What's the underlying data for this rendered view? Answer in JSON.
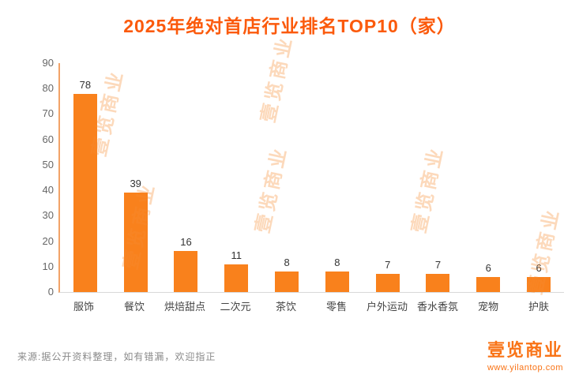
{
  "title": "2025年绝对首店行业排名TOP10（家）",
  "chart_data": {
    "type": "bar",
    "title": "2025年绝对首店行业排名TOP10（家）",
    "categories": [
      "服饰",
      "餐饮",
      "烘焙甜点",
      "二次元",
      "茶饮",
      "零售",
      "户外运动",
      "香水香氛",
      "宠物",
      "护肤"
    ],
    "values": [
      78,
      39,
      16,
      11,
      8,
      8,
      7,
      7,
      6,
      6
    ],
    "xlabel": "",
    "ylabel": "",
    "ylim": [
      0,
      90
    ],
    "yticks": [
      0,
      10,
      20,
      30,
      40,
      50,
      60,
      70,
      80,
      90
    ],
    "grid": false,
    "legend": false,
    "bar_color": "#f9811c"
  },
  "watermark": {
    "text": "壹览商业"
  },
  "footer": {
    "source": "来源:据公开资料整理，如有错漏，欢迎指正"
  },
  "logo": {
    "name": "壹览商业",
    "url": "www.yilantop.com"
  },
  "colors": {
    "title": "#fb5a0c",
    "bar": "#f9811c",
    "brand": "#f97316"
  }
}
